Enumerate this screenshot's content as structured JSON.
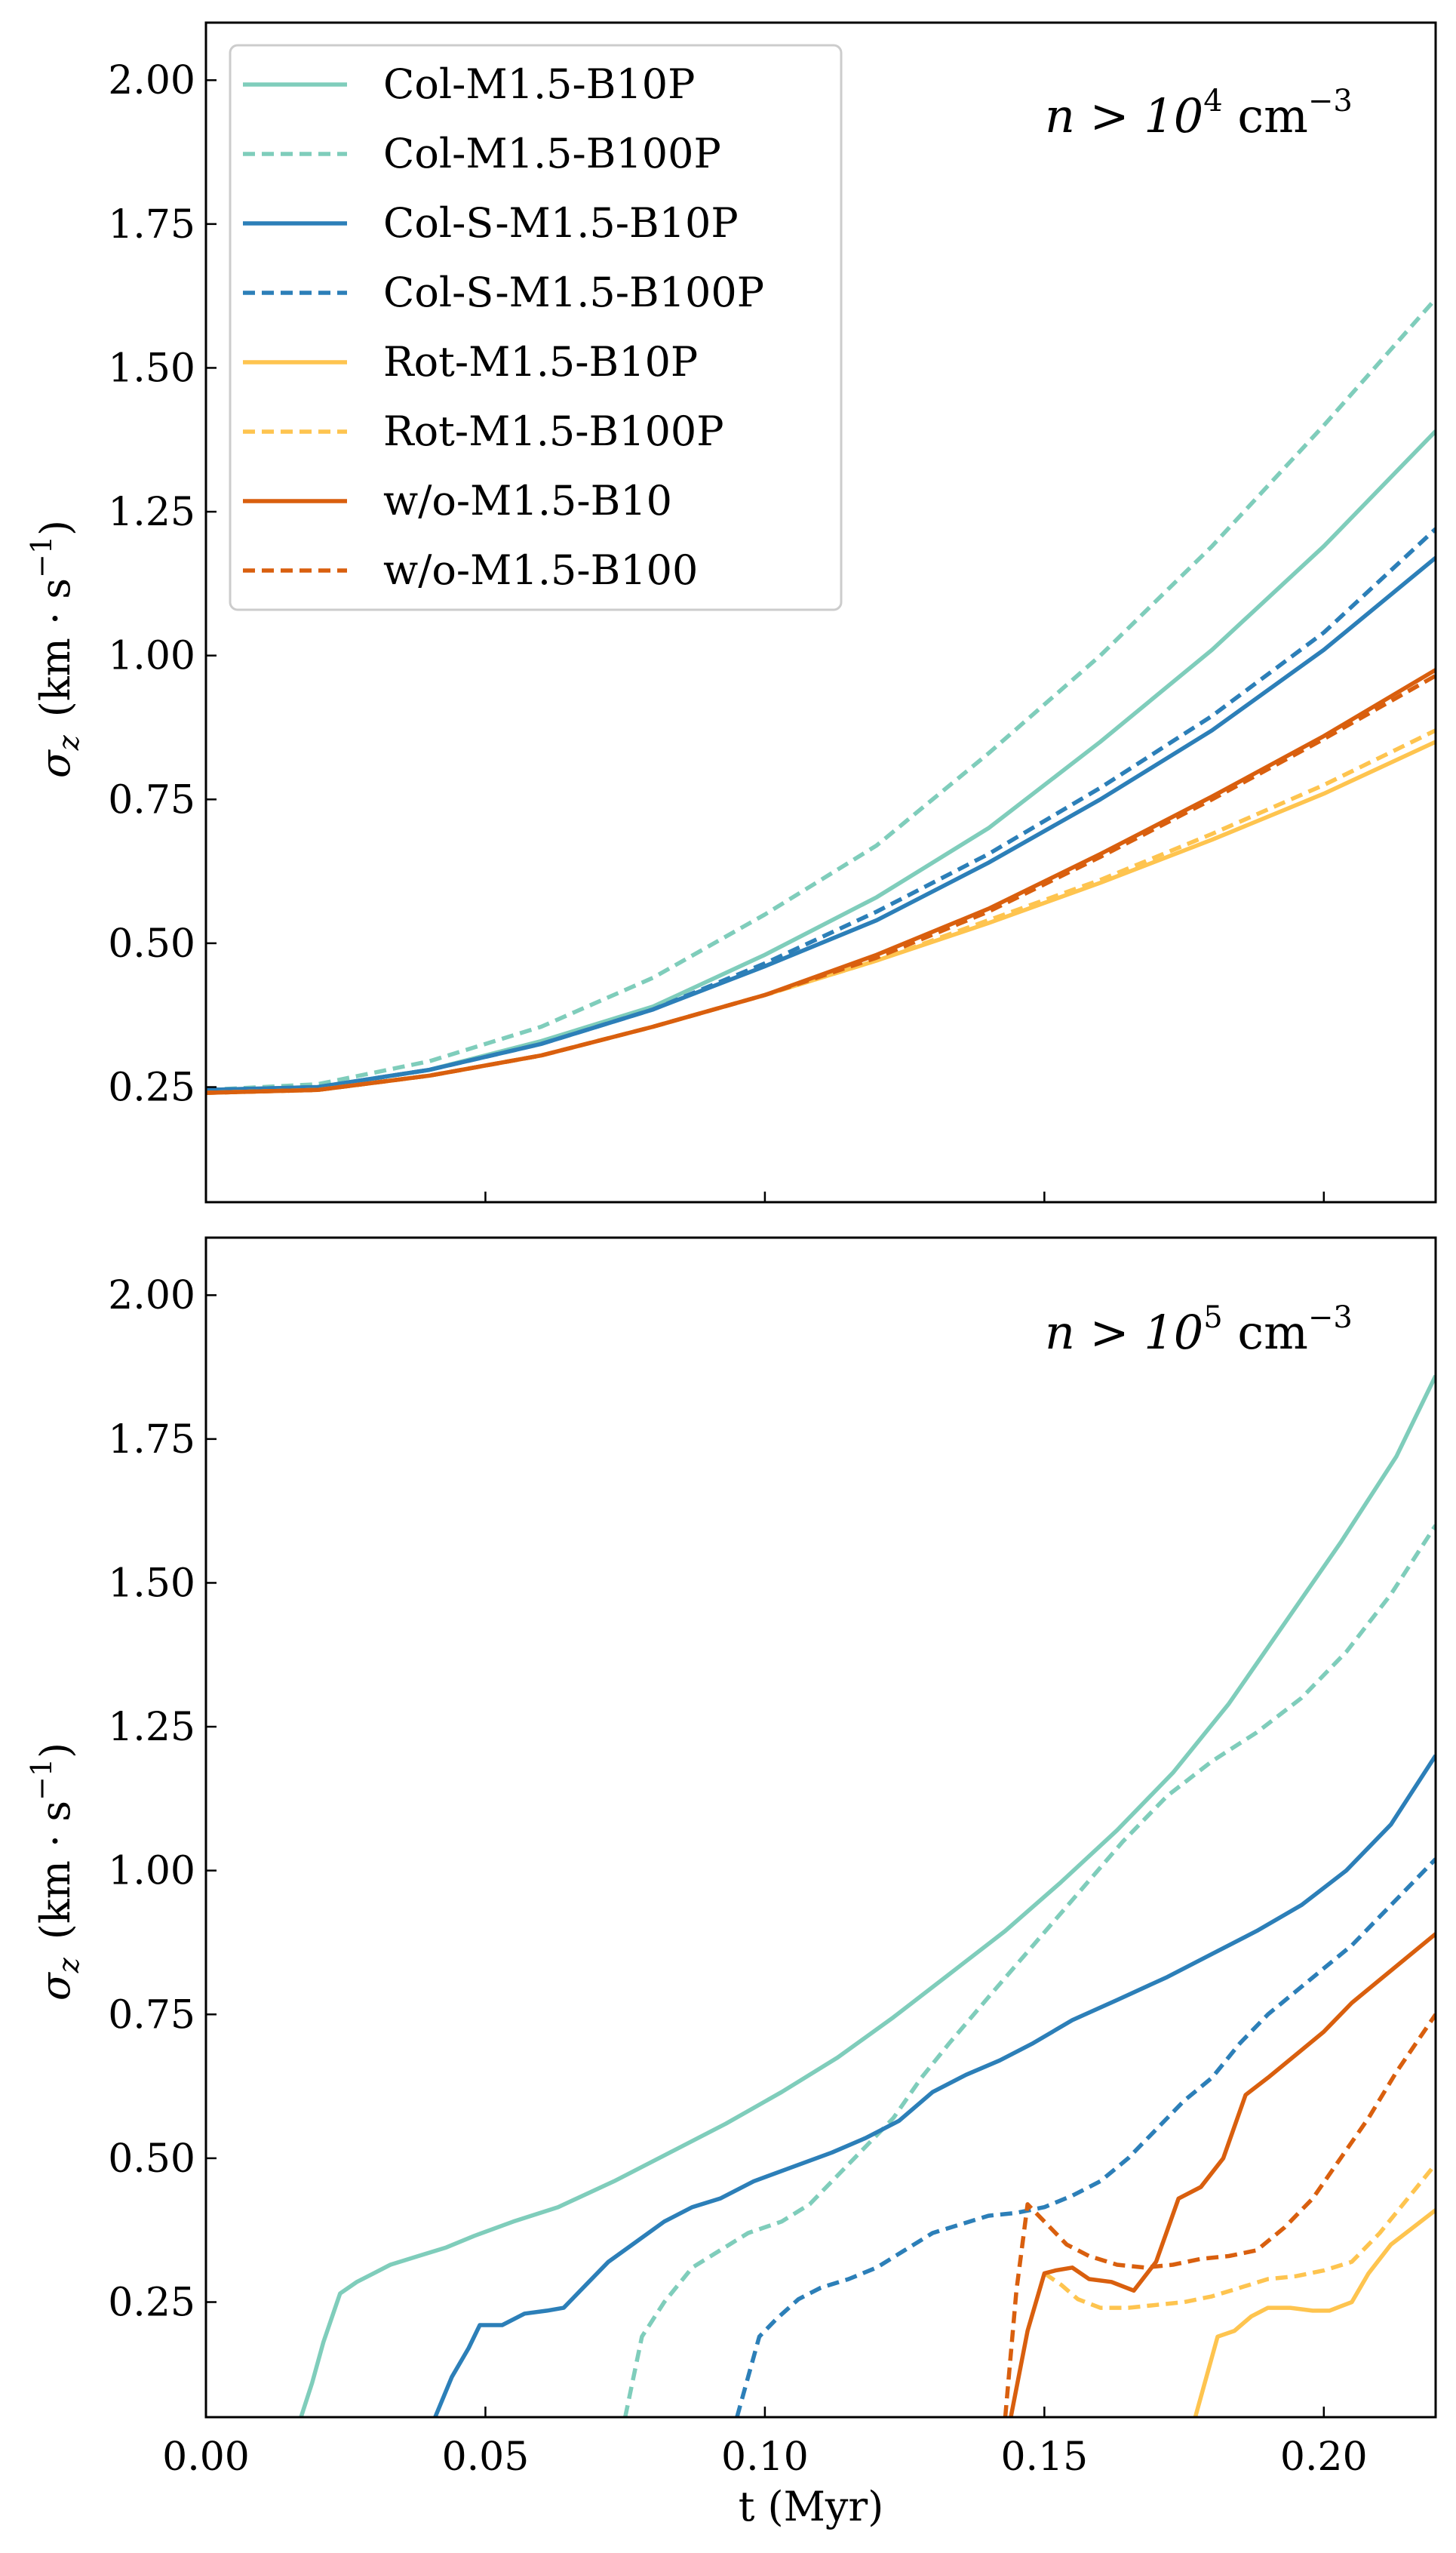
{
  "chart_data": [
    {
      "type": "line",
      "panel": "top",
      "annotation": {
        "prefix": "n > 10",
        "exp": "4",
        "unit": " cm",
        "unit_exp": "−3"
      },
      "xlabel": "",
      "ylabel": {
        "sym": "σ",
        "sub": "z",
        "unit": "(km · s",
        "unit_exp": "−1",
        "close": ")"
      },
      "xlim": [
        0.0,
        0.22
      ],
      "ylim": [
        0.05,
        2.1
      ],
      "xticks": [
        0.0,
        0.05,
        0.1,
        0.15,
        0.2
      ],
      "show_xtick_labels": false,
      "yticks": [
        0.25,
        0.5,
        0.75,
        1.0,
        1.25,
        1.5,
        1.75,
        2.0
      ],
      "ytick_labels": [
        "0.25",
        "0.50",
        "0.75",
        "1.00",
        "1.25",
        "1.50",
        "1.75",
        "2.00"
      ],
      "legend_position": "top-left",
      "series": [
        {
          "name": "Col-M1.5-B10P",
          "color": "#7fcdbb",
          "style": "solid",
          "x": [
            0.0,
            0.02,
            0.04,
            0.06,
            0.08,
            0.1,
            0.12,
            0.14,
            0.16,
            0.18,
            0.2,
            0.22
          ],
          "y": [
            0.245,
            0.25,
            0.28,
            0.33,
            0.39,
            0.48,
            0.58,
            0.7,
            0.85,
            1.01,
            1.19,
            1.39
          ]
        },
        {
          "name": "Col-M1.5-B100P",
          "color": "#7fcdbb",
          "style": "dashed",
          "x": [
            0.0,
            0.02,
            0.04,
            0.06,
            0.08,
            0.1,
            0.12,
            0.14,
            0.16,
            0.18,
            0.2,
            0.22
          ],
          "y": [
            0.245,
            0.255,
            0.295,
            0.355,
            0.44,
            0.55,
            0.67,
            0.83,
            1.0,
            1.19,
            1.4,
            1.62
          ]
        },
        {
          "name": "Col-S-M1.5-B10P",
          "color": "#2c7fb8",
          "style": "solid",
          "x": [
            0.0,
            0.02,
            0.04,
            0.06,
            0.08,
            0.1,
            0.12,
            0.14,
            0.16,
            0.18,
            0.2,
            0.22
          ],
          "y": [
            0.245,
            0.25,
            0.28,
            0.325,
            0.385,
            0.46,
            0.54,
            0.64,
            0.75,
            0.87,
            1.01,
            1.17
          ]
        },
        {
          "name": "Col-S-M1.5-B100P",
          "color": "#2c7fb8",
          "style": "dashed",
          "x": [
            0.0,
            0.02,
            0.04,
            0.06,
            0.08,
            0.1,
            0.12,
            0.14,
            0.16,
            0.18,
            0.2,
            0.22
          ],
          "y": [
            0.245,
            0.25,
            0.28,
            0.325,
            0.385,
            0.465,
            0.555,
            0.655,
            0.77,
            0.895,
            1.04,
            1.22
          ]
        },
        {
          "name": "Rot-M1.5-B10P",
          "color": "#fec44f",
          "style": "solid",
          "x": [
            0.0,
            0.02,
            0.04,
            0.06,
            0.08,
            0.1,
            0.12,
            0.14,
            0.16,
            0.18,
            0.2,
            0.22
          ],
          "y": [
            0.24,
            0.245,
            0.27,
            0.305,
            0.355,
            0.41,
            0.47,
            0.535,
            0.605,
            0.68,
            0.76,
            0.85
          ]
        },
        {
          "name": "Rot-M1.5-B100P",
          "color": "#fec44f",
          "style": "dashed",
          "x": [
            0.0,
            0.02,
            0.04,
            0.06,
            0.08,
            0.1,
            0.12,
            0.14,
            0.16,
            0.18,
            0.2,
            0.22
          ],
          "y": [
            0.24,
            0.245,
            0.27,
            0.305,
            0.355,
            0.41,
            0.47,
            0.54,
            0.61,
            0.69,
            0.775,
            0.87
          ]
        },
        {
          "name": "w/o-M1.5-B10",
          "color": "#d95f0e",
          "style": "solid",
          "x": [
            0.0,
            0.02,
            0.04,
            0.06,
            0.08,
            0.1,
            0.12,
            0.14,
            0.16,
            0.18,
            0.2,
            0.22
          ],
          "y": [
            0.24,
            0.245,
            0.27,
            0.305,
            0.355,
            0.41,
            0.48,
            0.56,
            0.655,
            0.755,
            0.86,
            0.975
          ]
        },
        {
          "name": "w/o-M1.5-B100",
          "color": "#d95f0e",
          "style": "dashed",
          "x": [
            0.0,
            0.02,
            0.04,
            0.06,
            0.08,
            0.1,
            0.12,
            0.14,
            0.16,
            0.18,
            0.2,
            0.22
          ],
          "y": [
            0.24,
            0.245,
            0.27,
            0.305,
            0.355,
            0.41,
            0.475,
            0.555,
            0.65,
            0.75,
            0.855,
            0.965
          ]
        }
      ]
    },
    {
      "type": "line",
      "panel": "bottom",
      "annotation": {
        "prefix": "n > 10",
        "exp": "5",
        "unit": " cm",
        "unit_exp": "−3"
      },
      "xlabel": "t (Myr)",
      "ylabel": {
        "sym": "σ",
        "sub": "z",
        "unit": "(km · s",
        "unit_exp": "−1",
        "close": ")"
      },
      "xlim": [
        0.0,
        0.22
      ],
      "ylim": [
        0.05,
        2.1
      ],
      "xticks": [
        0.0,
        0.05,
        0.1,
        0.15,
        0.2
      ],
      "xtick_labels": [
        "0.00",
        "0.05",
        "0.10",
        "0.15",
        "0.20"
      ],
      "show_xtick_labels": true,
      "yticks": [
        0.25,
        0.5,
        0.75,
        1.0,
        1.25,
        1.5,
        1.75,
        2.0
      ],
      "ytick_labels": [
        "0.25",
        "0.50",
        "0.75",
        "1.00",
        "1.25",
        "1.50",
        "1.75",
        "2.00"
      ],
      "series": [
        {
          "name": "Col-M1.5-B10P",
          "color": "#7fcdbb",
          "style": "solid",
          "x": [
            0.017,
            0.019,
            0.021,
            0.024,
            0.027,
            0.03,
            0.033,
            0.038,
            0.043,
            0.048,
            0.055,
            0.063,
            0.073,
            0.083,
            0.093,
            0.103,
            0.113,
            0.123,
            0.133,
            0.143,
            0.153,
            0.163,
            0.173,
            0.183,
            0.193,
            0.203,
            0.213,
            0.22
          ],
          "y": [
            0.05,
            0.11,
            0.18,
            0.265,
            0.285,
            0.3,
            0.315,
            0.33,
            0.345,
            0.365,
            0.39,
            0.415,
            0.46,
            0.51,
            0.56,
            0.615,
            0.675,
            0.745,
            0.82,
            0.895,
            0.98,
            1.07,
            1.17,
            1.29,
            1.43,
            1.57,
            1.72,
            1.86
          ]
        },
        {
          "name": "Col-M1.5-B100P",
          "color": "#7fcdbb",
          "style": "dashed",
          "x": [
            0.075,
            0.078,
            0.082,
            0.087,
            0.092,
            0.097,
            0.103,
            0.108,
            0.113,
            0.118,
            0.123,
            0.128,
            0.133,
            0.14,
            0.148,
            0.156,
            0.164,
            0.172,
            0.18,
            0.188,
            0.196,
            0.204,
            0.212,
            0.22
          ],
          "y": [
            0.05,
            0.19,
            0.25,
            0.31,
            0.34,
            0.37,
            0.39,
            0.42,
            0.47,
            0.52,
            0.57,
            0.64,
            0.7,
            0.78,
            0.87,
            0.96,
            1.05,
            1.13,
            1.19,
            1.24,
            1.3,
            1.38,
            1.48,
            1.6
          ]
        },
        {
          "name": "Col-S-M1.5-B10P",
          "color": "#2c7fb8",
          "style": "solid",
          "x": [
            0.041,
            0.044,
            0.047,
            0.049,
            0.053,
            0.057,
            0.061,
            0.064,
            0.068,
            0.072,
            0.077,
            0.082,
            0.087,
            0.092,
            0.098,
            0.105,
            0.112,
            0.118,
            0.124,
            0.13,
            0.136,
            0.142,
            0.148,
            0.155,
            0.163,
            0.172,
            0.18,
            0.188,
            0.196,
            0.204,
            0.212,
            0.22
          ],
          "y": [
            0.05,
            0.12,
            0.17,
            0.21,
            0.21,
            0.23,
            0.235,
            0.24,
            0.28,
            0.32,
            0.355,
            0.39,
            0.415,
            0.43,
            0.46,
            0.485,
            0.51,
            0.535,
            0.565,
            0.615,
            0.645,
            0.67,
            0.7,
            0.74,
            0.775,
            0.815,
            0.855,
            0.895,
            0.94,
            1.0,
            1.08,
            1.2
          ]
        },
        {
          "name": "Col-S-M1.5-B100P",
          "color": "#2c7fb8",
          "style": "dashed",
          "x": [
            0.095,
            0.097,
            0.099,
            0.102,
            0.106,
            0.11,
            0.115,
            0.12,
            0.125,
            0.13,
            0.135,
            0.14,
            0.145,
            0.15,
            0.155,
            0.16,
            0.165,
            0.17,
            0.175,
            0.18,
            0.185,
            0.19,
            0.195,
            0.2,
            0.205,
            0.21,
            0.215,
            0.22
          ],
          "y": [
            0.05,
            0.12,
            0.19,
            0.22,
            0.255,
            0.275,
            0.29,
            0.31,
            0.34,
            0.37,
            0.385,
            0.4,
            0.405,
            0.415,
            0.435,
            0.46,
            0.5,
            0.55,
            0.6,
            0.64,
            0.7,
            0.75,
            0.79,
            0.83,
            0.87,
            0.92,
            0.97,
            1.02
          ]
        },
        {
          "name": "Rot-M1.5-B10P",
          "color": "#fec44f",
          "style": "solid",
          "x": [
            0.177,
            0.179,
            0.181,
            0.184,
            0.187,
            0.19,
            0.194,
            0.198,
            0.201,
            0.205,
            0.208,
            0.212,
            0.216,
            0.22
          ],
          "y": [
            0.05,
            0.12,
            0.19,
            0.2,
            0.225,
            0.24,
            0.24,
            0.235,
            0.235,
            0.25,
            0.3,
            0.35,
            0.38,
            0.41
          ]
        },
        {
          "name": "Rot-M1.5-B100P",
          "color": "#fec44f",
          "style": "dashed",
          "x": [
            0.15,
            0.153,
            0.156,
            0.16,
            0.165,
            0.17,
            0.175,
            0.18,
            0.185,
            0.19,
            0.195,
            0.2,
            0.205,
            0.21,
            0.215,
            0.22
          ],
          "y": [
            0.3,
            0.28,
            0.255,
            0.24,
            0.24,
            0.245,
            0.25,
            0.26,
            0.275,
            0.29,
            0.295,
            0.305,
            0.32,
            0.37,
            0.43,
            0.49
          ]
        },
        {
          "name": "w/o-M1.5-B10",
          "color": "#d95f0e",
          "style": "solid",
          "x": [
            0.144,
            0.147,
            0.15,
            0.152,
            0.155,
            0.158,
            0.162,
            0.166,
            0.17,
            0.174,
            0.178,
            0.182,
            0.186,
            0.19,
            0.195,
            0.2,
            0.205,
            0.21,
            0.215,
            0.22
          ],
          "y": [
            0.05,
            0.2,
            0.3,
            0.305,
            0.31,
            0.29,
            0.285,
            0.27,
            0.32,
            0.43,
            0.45,
            0.5,
            0.61,
            0.64,
            0.68,
            0.72,
            0.77,
            0.81,
            0.85,
            0.89
          ]
        },
        {
          "name": "w/o-M1.5-B100",
          "color": "#d95f0e",
          "style": "dashed",
          "x": [
            0.143,
            0.145,
            0.147,
            0.15,
            0.154,
            0.158,
            0.163,
            0.168,
            0.173,
            0.178,
            0.183,
            0.188,
            0.193,
            0.198,
            0.203,
            0.208,
            0.213,
            0.22
          ],
          "y": [
            0.05,
            0.27,
            0.42,
            0.39,
            0.35,
            0.33,
            0.315,
            0.31,
            0.315,
            0.325,
            0.33,
            0.34,
            0.38,
            0.43,
            0.5,
            0.57,
            0.65,
            0.75
          ]
        }
      ]
    }
  ]
}
